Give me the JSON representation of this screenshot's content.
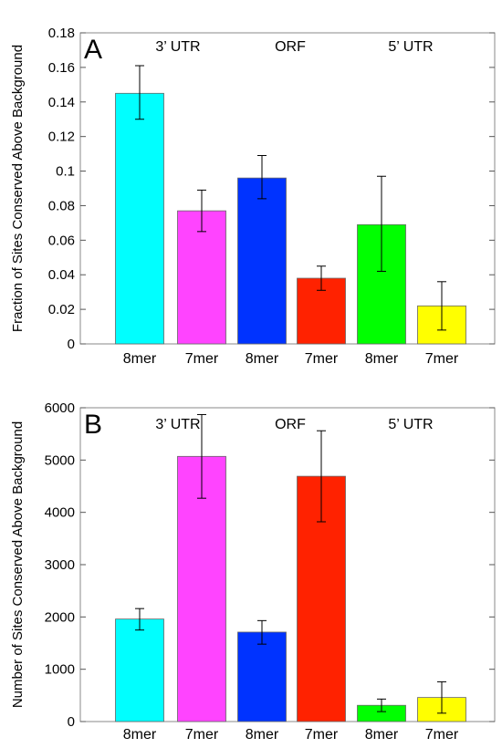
{
  "chart_data": [
    {
      "type": "bar",
      "panel_label": "A",
      "ylabel": "Fraction of Sites Conserved Above Background",
      "ylim": [
        0,
        0.18
      ],
      "yticks": [
        0,
        0.02,
        0.04,
        0.06,
        0.08,
        0.1,
        0.12,
        0.14,
        0.16,
        0.18
      ],
      "ytick_labels": [
        "0",
        "0.02",
        "0.04",
        "0.06",
        "0.08",
        "0.1",
        "0.12",
        "0.14",
        "0.16",
        "0.18"
      ],
      "categories": [
        "8mer",
        "7mer",
        "8mer",
        "7mer",
        "8mer",
        "7mer"
      ],
      "groups": [
        "3’ UTR",
        "ORF",
        "5’ UTR"
      ],
      "values": [
        0.145,
        0.077,
        0.096,
        0.038,
        0.069,
        0.022
      ],
      "error_low": [
        0.13,
        0.065,
        0.084,
        0.031,
        0.042,
        0.008
      ],
      "error_high": [
        0.161,
        0.089,
        0.109,
        0.045,
        0.097,
        0.036
      ],
      "colors": [
        "#00ffff",
        "#ff44ff",
        "#0033ff",
        "#ff2200",
        "#00ff00",
        "#ffff00"
      ],
      "grid": false
    },
    {
      "type": "bar",
      "panel_label": "B",
      "ylabel": "Number of Sites Conserved Above Background",
      "ylim": [
        0,
        6000
      ],
      "yticks": [
        0,
        1000,
        2000,
        3000,
        4000,
        5000,
        6000
      ],
      "ytick_labels": [
        "0",
        "1000",
        "2000",
        "3000",
        "4000",
        "5000",
        "6000"
      ],
      "categories": [
        "8mer",
        "7mer",
        "8mer",
        "7mer",
        "8mer",
        "7mer"
      ],
      "groups": [
        "3’ UTR",
        "ORF",
        "5’ UTR"
      ],
      "values": [
        1960,
        5070,
        1710,
        4690,
        310,
        460
      ],
      "error_low": [
        1750,
        4270,
        1480,
        3820,
        190,
        160
      ],
      "error_high": [
        2160,
        5870,
        1930,
        5560,
        430,
        760
      ],
      "colors": [
        "#00ffff",
        "#ff44ff",
        "#0033ff",
        "#ff2200",
        "#00ff00",
        "#ffff00"
      ],
      "grid": false
    }
  ]
}
